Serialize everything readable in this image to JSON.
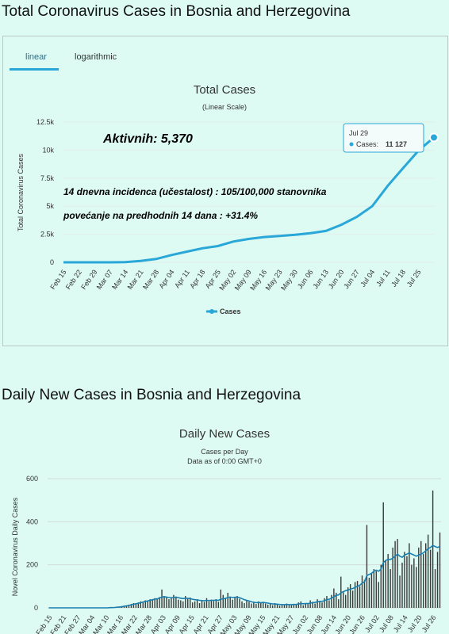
{
  "headings": {
    "total": "Total Coronavirus Cases in Bosnia and Herzegovina",
    "daily": "Daily New Cases in Bosnia and Herzegovina"
  },
  "tabs": {
    "linear": "linear",
    "logarithmic": "logarithmic"
  },
  "colors": {
    "accent": "#28a7d8",
    "bar": "#3a3a3a",
    "line": "#1a7fb0",
    "background": "#ddfbf2"
  },
  "chart_data": [
    {
      "type": "line",
      "title": "Total Cases",
      "subtitle": "(Linear Scale)",
      "xlabel": "",
      "ylabel": "Total Coronavirus Cases",
      "ylim": [
        0,
        12500
      ],
      "yticks": [
        0,
        2500,
        5000,
        7500,
        10000,
        12500
      ],
      "ytick_labels": [
        "0",
        "2.5k",
        "5k",
        "7.5k",
        "10k",
        "12.5k"
      ],
      "xtick_labels": [
        "Feb 15",
        "Feb 22",
        "Feb 29",
        "Mar 07",
        "Mar 14",
        "Mar 21",
        "Mar 28",
        "Apr 04",
        "Apr 11",
        "Apr 18",
        "Apr 25",
        "May 02",
        "May 09",
        "May 16",
        "May 23",
        "May 30",
        "Jun 06",
        "Jun 13",
        "Jun 20",
        "Jun 27",
        "Jul 04",
        "Jul 11",
        "Jul 18",
        "Jul 25"
      ],
      "legend": "Cases",
      "legend_position": "bottom",
      "series": [
        {
          "name": "Cases",
          "x": [
            "Feb 15",
            "Feb 22",
            "Feb 29",
            "Mar 07",
            "Mar 14",
            "Mar 21",
            "Mar 28",
            "Apr 04",
            "Apr 11",
            "Apr 18",
            "Apr 25",
            "May 02",
            "May 09",
            "May 16",
            "May 23",
            "May 30",
            "Jun 06",
            "Jun 13",
            "Jun 20",
            "Jun 27",
            "Jul 04",
            "Jul 11",
            "Jul 18",
            "Jul 25",
            "Jul 29"
          ],
          "values": [
            0,
            0,
            0,
            0,
            20,
            120,
            300,
            650,
            950,
            1250,
            1450,
            1850,
            2080,
            2250,
            2350,
            2450,
            2600,
            2800,
            3350,
            4050,
            5000,
            6800,
            8400,
            9950,
            11127
          ]
        }
      ],
      "annotations": [
        "Aktivnih: 5,370",
        "14 dnevna incidenca (učestalost) : 105/100,000 stanovnika",
        "povećanje na predhodnih 14 dana : +31.4%"
      ],
      "tooltip": {
        "date": "Jul 29",
        "label": "Cases:",
        "value": "11 127"
      }
    },
    {
      "type": "bar",
      "title": "Daily New Cases",
      "subtitle": "Cases per Day",
      "subtitle2": "Data as of 0:00 GMT+0",
      "xlabel": "",
      "ylabel": "Novel Coronavirus Daily Cases",
      "ylim": [
        0,
        600
      ],
      "yticks": [
        0,
        200,
        400,
        600
      ],
      "xtick_labels": [
        "Feb 15",
        "Feb 21",
        "Feb 27",
        "Mar 04",
        "Mar 10",
        "Mar 16",
        "Mar 22",
        "Mar 28",
        "Apr 03",
        "Apr 09",
        "Apr 15",
        "Apr 21",
        "Apr 27",
        "May 03",
        "May 09",
        "May 15",
        "May 21",
        "May 27",
        "Jun 02",
        "Jun 08",
        "Jun 14",
        "Jun 20",
        "Jun 26",
        "Jul 02",
        "Jul 08",
        "Jul 14",
        "Jul 20",
        "Jul 26"
      ],
      "values": [
        0,
        0,
        0,
        0,
        0,
        0,
        0,
        0,
        0,
        0,
        0,
        0,
        0,
        0,
        0,
        0,
        0,
        0,
        0,
        0,
        0,
        0,
        0,
        0,
        1,
        0,
        2,
        1,
        3,
        5,
        4,
        8,
        10,
        12,
        15,
        18,
        22,
        20,
        25,
        30,
        28,
        35,
        32,
        40,
        38,
        45,
        42,
        50,
        85,
        55,
        48,
        40,
        45,
        60,
        52,
        38,
        35,
        30,
        55,
        42,
        48,
        25,
        30,
        40,
        22,
        35,
        28,
        45,
        30,
        38,
        32,
        40,
        28,
        85,
        60,
        45,
        70,
        52,
        38,
        48,
        55,
        42,
        30,
        22,
        35,
        28,
        20,
        25,
        18,
        30,
        22,
        28,
        20,
        15,
        18,
        12,
        22,
        16,
        10,
        14,
        12,
        20,
        15,
        12,
        18,
        14,
        25,
        30,
        12,
        22,
        18,
        35,
        28,
        20,
        40,
        30,
        25,
        45,
        55,
        35,
        60,
        90,
        70,
        40,
        145,
        75,
        60,
        95,
        110,
        80,
        120,
        125,
        100,
        150,
        130,
        385,
        140,
        160,
        180,
        170,
        120,
        200,
        490,
        220,
        250,
        180,
        280,
        310,
        320,
        150,
        210,
        260,
        240,
        300,
        200,
        230,
        190,
        280,
        310,
        250,
        300,
        340,
        270,
        545,
        180,
        260,
        350
      ],
      "moving_average": [
        0,
        0,
        0,
        0,
        0,
        0,
        0,
        0,
        0,
        0,
        0,
        0,
        0,
        0,
        0,
        0,
        0,
        0,
        0,
        0,
        0,
        0,
        0,
        0,
        0,
        0,
        1,
        1,
        2,
        3,
        4,
        5,
        7,
        9,
        11,
        14,
        17,
        19,
        21,
        24,
        27,
        30,
        32,
        35,
        38,
        40,
        42,
        45,
        50,
        52,
        50,
        48,
        47,
        48,
        50,
        47,
        45,
        43,
        45,
        44,
        43,
        40,
        38,
        37,
        35,
        34,
        33,
        35,
        34,
        35,
        35,
        36,
        35,
        40,
        42,
        44,
        48,
        50,
        48,
        49,
        50,
        47,
        43,
        38,
        35,
        32,
        28,
        26,
        24,
        25,
        24,
        25,
        24,
        22,
        20,
        18,
        18,
        17,
        16,
        15,
        15,
        16,
        15,
        15,
        16,
        16,
        18,
        20,
        19,
        20,
        20,
        22,
        24,
        25,
        28,
        30,
        30,
        33,
        38,
        40,
        45,
        52,
        58,
        60,
        70,
        75,
        80,
        82,
        88,
        90,
        95,
        100,
        105,
        115,
        120,
        150,
        155,
        160,
        170,
        175,
        170,
        180,
        210,
        220,
        225,
        225,
        230,
        240,
        250,
        240,
        235,
        245,
        250,
        255,
        250,
        245,
        240,
        245,
        250,
        255,
        265,
        275,
        280,
        290,
        285,
        280,
        285
      ]
    }
  ]
}
